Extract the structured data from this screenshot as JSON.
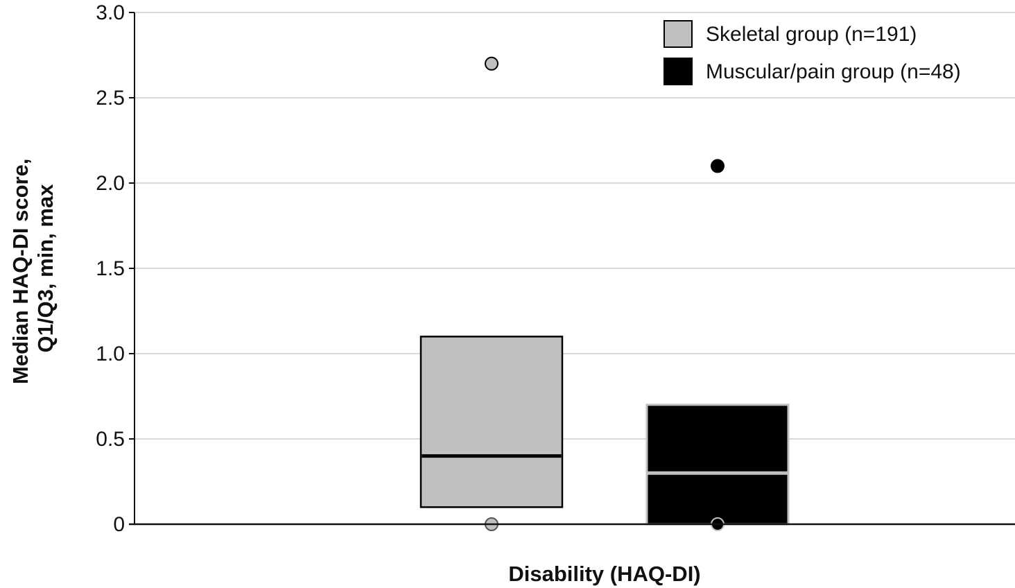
{
  "chart_data": {
    "type": "box",
    "title": "",
    "xlabel": "Disability (HAQ-DI)",
    "ylabel_lines": [
      "Median HAQ-DI score,",
      "Q1/Q3, min, max"
    ],
    "ylim": [
      0,
      3.0
    ],
    "yticks": [
      {
        "value": 0,
        "label": "0"
      },
      {
        "value": 0.5,
        "label": "0.5"
      },
      {
        "value": 1.0,
        "label": "1.0"
      },
      {
        "value": 1.5,
        "label": "1.5"
      },
      {
        "value": 2.0,
        "label": "2.0"
      },
      {
        "value": 2.5,
        "label": "2.5"
      },
      {
        "value": 3.0,
        "label": "3.0"
      }
    ],
    "grid": true,
    "legend_position": "top-right",
    "series": [
      {
        "name": "Skeletal group (n=191)",
        "color": "#c0c0c0",
        "median_color": "#000000",
        "marker_color": "#c0c0c0",
        "min": 0,
        "q1": 0.1,
        "median": 0.4,
        "q3": 1.1,
        "max": 2.7
      },
      {
        "name": "Muscular/pain group (n=48)",
        "color": "#000000",
        "median_color": "#c0c0c0",
        "marker_color": "#000000",
        "min": 0,
        "q1": 0,
        "median": 0.3,
        "q3": 0.7,
        "max": 2.1
      }
    ]
  }
}
